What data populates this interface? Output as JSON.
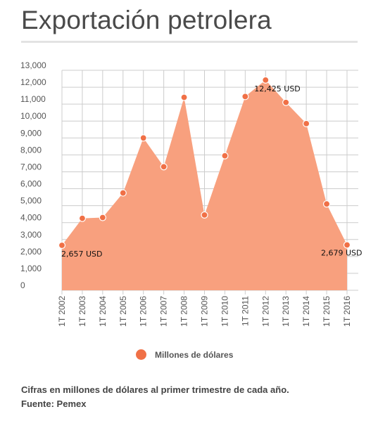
{
  "header": {
    "title": "Exportación petrolera"
  },
  "chart_data": {
    "type": "area",
    "categories": [
      "1T 2002",
      "1T 2003",
      "1T 2004",
      "1T 2005",
      "1T 2006",
      "1T 2007",
      "1T 2008",
      "1T 2009",
      "1T 2010",
      "1T 2011",
      "1T 2012",
      "1T 2013",
      "1T 2014",
      "1T 2015",
      "1T 2016"
    ],
    "series": [
      {
        "name": "Millones de dólares",
        "values": [
          2657,
          4250,
          4300,
          5750,
          9000,
          7300,
          11400,
          4450,
          7950,
          11450,
          12425,
          11100,
          9850,
          5100,
          2679
        ]
      }
    ],
    "ylim": [
      0,
      13000
    ],
    "yticks": [
      0,
      1000,
      2000,
      3000,
      4000,
      5000,
      6000,
      7000,
      8000,
      9000,
      10000,
      11000,
      12000,
      13000
    ],
    "ytick_labels": [
      "0",
      "1,000",
      "2,000",
      "3,000",
      "4,000",
      "5,000",
      "6,000",
      "7,000",
      "8,000",
      "9,000",
      "10,000",
      "11,000",
      "12,000",
      "13,000"
    ],
    "annotations": [
      {
        "index": 0,
        "text": "2,657 USD"
      },
      {
        "index": 10,
        "text": "12,425 USD"
      },
      {
        "index": 14,
        "text": "2,679 USD"
      }
    ],
    "grid": true,
    "legend_position": "bottom",
    "colors": {
      "fill": "#f8a07e",
      "marker": "#f07046",
      "marker_edge": "#ffffff",
      "grid": "#cccccc"
    }
  },
  "legend": {
    "label": "Millones de dólares"
  },
  "footer": {
    "note": "Cifras en millones de dólares al primer trimestre de cada año.",
    "source": "Fuente: Pemex"
  }
}
